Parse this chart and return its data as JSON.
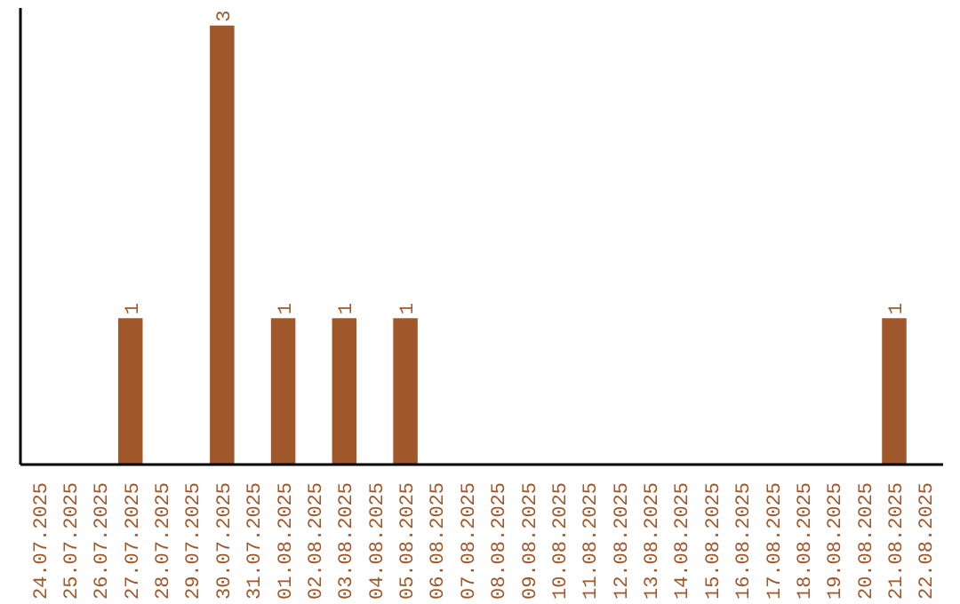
{
  "chart_data": {
    "type": "bar",
    "categories": [
      "24.07.2025",
      "25.07.2025",
      "26.07.2025",
      "27.07.2025",
      "28.07.2025",
      "29.07.2025",
      "30.07.2025",
      "31.07.2025",
      "01.08.2025",
      "02.08.2025",
      "03.08.2025",
      "04.08.2025",
      "05.08.2025",
      "06.08.2025",
      "07.08.2025",
      "08.08.2025",
      "09.08.2025",
      "10.08.2025",
      "11.08.2025",
      "12.08.2025",
      "13.08.2025",
      "14.08.2025",
      "15.08.2025",
      "16.08.2025",
      "17.08.2025",
      "18.08.2025",
      "19.08.2025",
      "20.08.2025",
      "21.08.2025",
      "22.08.2025"
    ],
    "values": [
      0,
      0,
      0,
      1,
      0,
      0,
      3,
      0,
      1,
      0,
      1,
      0,
      1,
      0,
      0,
      0,
      0,
      0,
      0,
      0,
      0,
      0,
      0,
      0,
      0,
      0,
      0,
      0,
      1,
      0
    ],
    "value_labels": [
      null,
      null,
      null,
      "1",
      null,
      null,
      "3",
      null,
      "1",
      null,
      "1",
      null,
      "1",
      null,
      null,
      null,
      null,
      null,
      null,
      null,
      null,
      null,
      null,
      null,
      null,
      null,
      null,
      null,
      "1",
      null
    ],
    "color": "#a0572a",
    "ylim": [
      0,
      3.12
    ],
    "tick_labels": "x",
    "grid": false
  }
}
